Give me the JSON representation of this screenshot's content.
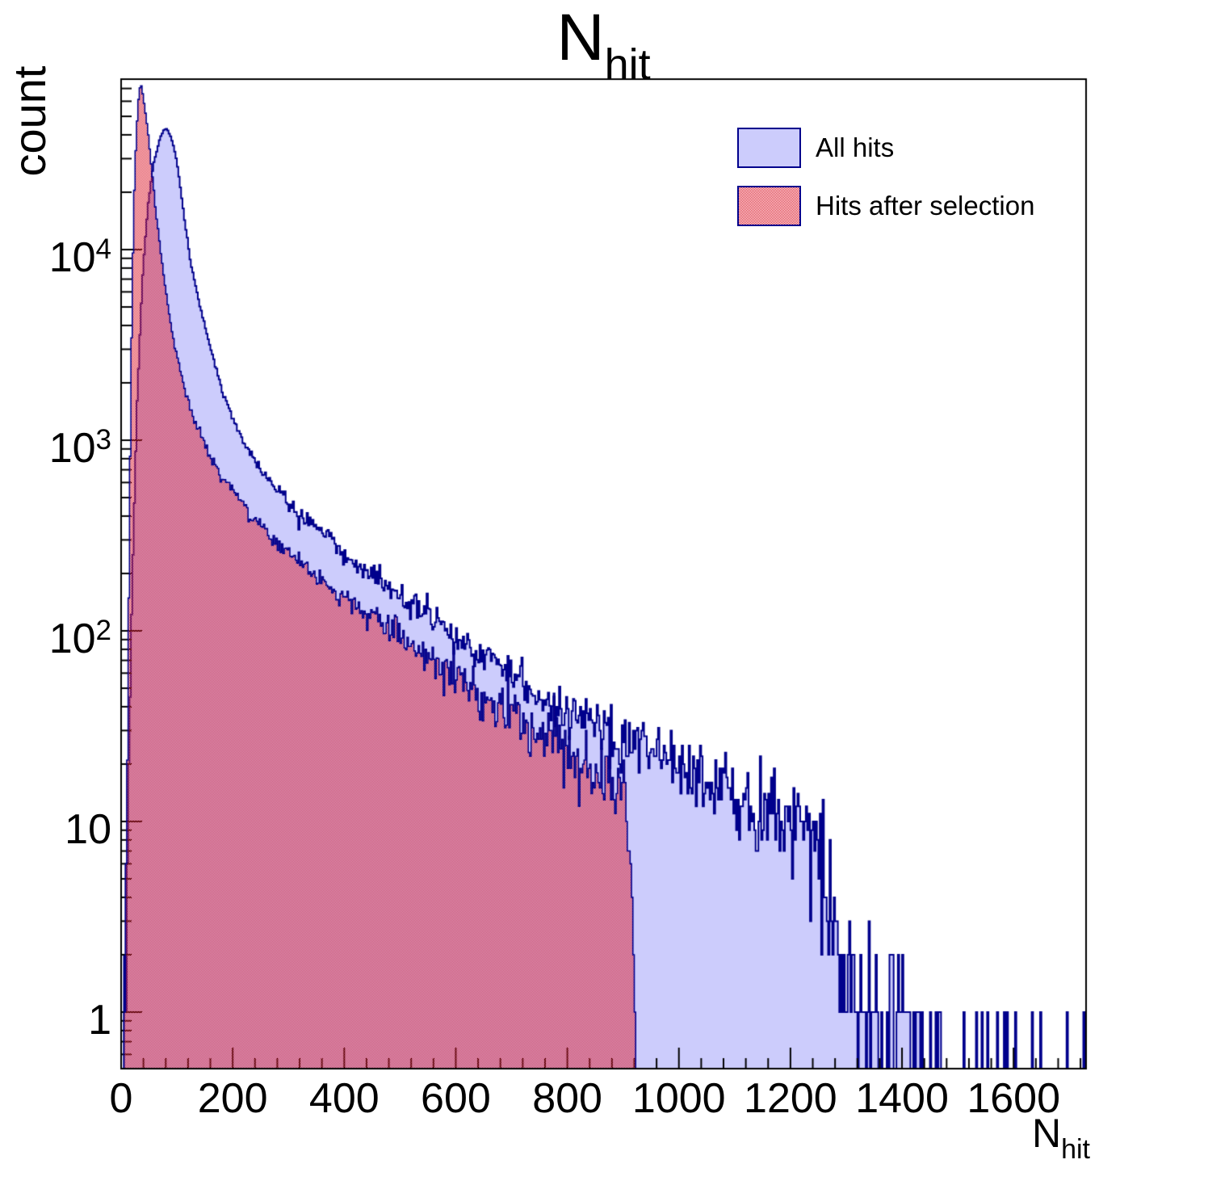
{
  "title": {
    "main": "N",
    "sub": "hit"
  },
  "y_axis": {
    "title": "count",
    "tick_labels": [
      {
        "value": 1,
        "base": "1",
        "exp": ""
      },
      {
        "value": 10,
        "base": "10",
        "exp": ""
      },
      {
        "value": 100,
        "base": "10",
        "exp": "2"
      },
      {
        "value": 1000,
        "base": "10",
        "exp": "3"
      },
      {
        "value": 10000,
        "base": "10",
        "exp": "4"
      }
    ]
  },
  "x_axis": {
    "title_main": "N",
    "title_sub": "hit",
    "tick_values": [
      0,
      200,
      400,
      600,
      800,
      1000,
      1200,
      1400,
      1600
    ],
    "minor_step": 40
  },
  "legend": {
    "entries": [
      {
        "label": "All hits",
        "fill": "solid"
      },
      {
        "label": "Hits after selection",
        "fill": "checker"
      }
    ]
  },
  "colors": {
    "fill_blue": "#ccccfc",
    "line_blue": "#00008c",
    "fill_red": "#dd2233",
    "frame": "#000000",
    "background": "#ffffff"
  },
  "chart_data": {
    "type": "histogram",
    "title": "N_hit",
    "xlabel": "N_hit",
    "ylabel": "count",
    "y_scale": "log",
    "x_range": [
      0,
      1730
    ],
    "y_range": [
      0.5,
      78000
    ],
    "bin_width": 2.5,
    "noise_seed": 911,
    "series": [
      {
        "name": "All hits",
        "style": "solid",
        "anchors": [
          [
            6,
            0.6
          ],
          [
            10,
            3
          ],
          [
            14,
            25
          ],
          [
            20,
            180
          ],
          [
            28,
            1400
          ],
          [
            38,
            7000
          ],
          [
            48,
            17000
          ],
          [
            58,
            28000
          ],
          [
            68,
            37000
          ],
          [
            76,
            42500
          ],
          [
            82,
            43000
          ],
          [
            90,
            39000
          ],
          [
            100,
            29000
          ],
          [
            113,
            15000
          ],
          [
            125,
            8500
          ],
          [
            140,
            5200
          ],
          [
            156,
            3400
          ],
          [
            175,
            2100
          ],
          [
            200,
            1300
          ],
          [
            230,
            860
          ],
          [
            272,
            590
          ],
          [
            310,
            430
          ],
          [
            359,
            330
          ],
          [
            400,
            265
          ],
          [
            432,
            220
          ],
          [
            470,
            180
          ],
          [
            504,
            150
          ],
          [
            560,
            115
          ],
          [
            591,
            100
          ],
          [
            640,
            75
          ],
          [
            678,
            62
          ],
          [
            720,
            50
          ],
          [
            765,
            42
          ],
          [
            810,
            36
          ],
          [
            851,
            31
          ],
          [
            900,
            26
          ],
          [
            938,
            23
          ],
          [
            990,
            19
          ],
          [
            1025,
            17
          ],
          [
            1070,
            15
          ],
          [
            1112,
            13
          ],
          [
            1150,
            11.5
          ],
          [
            1199,
            9.5
          ],
          [
            1230,
            8
          ],
          [
            1250,
            7
          ],
          [
            1262,
            5.5
          ],
          [
            1272,
            3.5
          ],
          [
            1285,
            2.2
          ],
          [
            1300,
            1.6
          ],
          [
            1315,
            1.1
          ],
          [
            1330,
            0.9
          ]
        ],
        "tail_segments": [
          [
            1330,
            1365,
            0.7,
            3
          ],
          [
            1365,
            1425,
            0.45,
            2
          ],
          [
            1425,
            1485,
            0.28,
            1
          ],
          [
            1485,
            1575,
            0.12,
            1
          ]
        ],
        "extra_bars": [
          [
            1583,
            1
          ],
          [
            1588,
            1
          ],
          [
            1604,
            1
          ],
          [
            1634,
            1
          ],
          [
            1648,
            1
          ],
          [
            1697,
            1
          ],
          [
            1727,
            1
          ]
        ]
      },
      {
        "name": "Hits after selection",
        "style": "checker",
        "anchors": [
          [
            6,
            0.8
          ],
          [
            9,
            4
          ],
          [
            12,
            40
          ],
          [
            15,
            400
          ],
          [
            18,
            2500
          ],
          [
            21,
            9000
          ],
          [
            24,
            22000
          ],
          [
            27,
            38000
          ],
          [
            30,
            56000
          ],
          [
            33,
            70000
          ],
          [
            36,
            73000
          ],
          [
            40,
            62000
          ],
          [
            44,
            51000
          ],
          [
            48,
            42000
          ],
          [
            55,
            26000
          ],
          [
            62,
            16000
          ],
          [
            70,
            10500
          ],
          [
            78,
            6800
          ],
          [
            84,
            5100
          ],
          [
            95,
            3200
          ],
          [
            113,
            1900
          ],
          [
            130,
            1300
          ],
          [
            156,
            860
          ],
          [
            180,
            640
          ],
          [
            214,
            480
          ],
          [
            250,
            350
          ],
          [
            287,
            270
          ],
          [
            330,
            222
          ],
          [
            359,
            185
          ],
          [
            400,
            150
          ],
          [
            432,
            125
          ],
          [
            470,
            105
          ],
          [
            504,
            91
          ],
          [
            550,
            72
          ],
          [
            591,
            60
          ],
          [
            640,
            48
          ],
          [
            678,
            41
          ],
          [
            720,
            33
          ],
          [
            765,
            28
          ],
          [
            810,
            22
          ],
          [
            851,
            16
          ],
          [
            880,
            14
          ],
          [
            908,
            13
          ],
          [
            914,
            6
          ],
          [
            918,
            2.5
          ],
          [
            921,
            1
          ],
          [
            923,
            0.5
          ]
        ]
      }
    ]
  }
}
